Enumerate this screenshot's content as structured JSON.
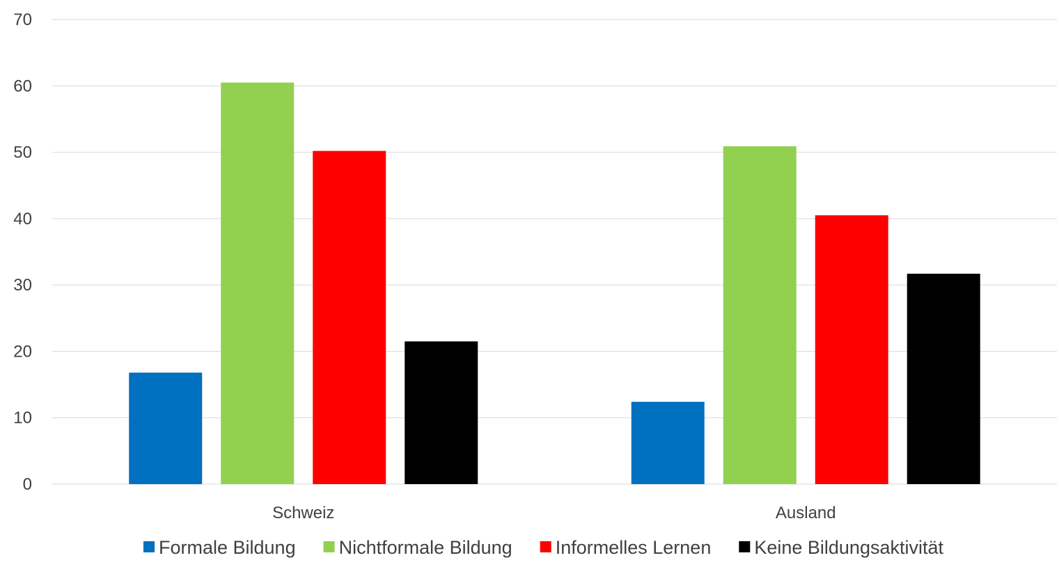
{
  "chart_data": {
    "type": "bar",
    "categories": [
      "Schweiz",
      "Ausland"
    ],
    "series": [
      {
        "name": "Formale Bildung",
        "values": [
          16.8,
          12.4
        ],
        "color": "#0070C0"
      },
      {
        "name": "Nichtformale Bildung",
        "values": [
          60.5,
          50.9
        ],
        "color": "#92D050"
      },
      {
        "name": "Informelles Lernen",
        "values": [
          50.2,
          40.5
        ],
        "color": "#FF0000"
      },
      {
        "name": "Keine Bildungsaktivität",
        "values": [
          21.5,
          31.7
        ],
        "color": "#000000"
      }
    ],
    "ylim": [
      0,
      70
    ],
    "yticks": [
      "0",
      "10",
      "20",
      "30",
      "40",
      "50",
      "60",
      "70"
    ],
    "grid": true,
    "legend_position": "bottom",
    "gridline_color": "#D9D9D9"
  }
}
